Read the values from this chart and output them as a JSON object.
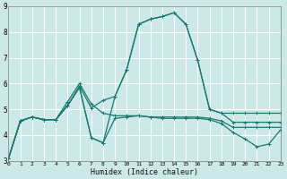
{
  "xlabel": "Humidex (Indice chaleur)",
  "xlim": [
    0,
    23
  ],
  "ylim": [
    3,
    9
  ],
  "xticks": [
    0,
    1,
    2,
    3,
    4,
    5,
    6,
    7,
    8,
    9,
    10,
    11,
    12,
    13,
    14,
    15,
    16,
    17,
    18,
    19,
    20,
    21,
    22,
    23
  ],
  "yticks": [
    3,
    4,
    5,
    6,
    7,
    8,
    9
  ],
  "bg_color": "#cce8e8",
  "grid_color": "#ffffff",
  "line_color": "#1a7a6e",
  "line_width": 0.9,
  "marker": "+",
  "marker_size": 3.5,
  "marker_ew": 0.7,
  "lines": [
    {
      "x": [
        0,
        1,
        2,
        3,
        4,
        5,
        6,
        7,
        8,
        9,
        10,
        11,
        12,
        13,
        14,
        15,
        16,
        17,
        18,
        19,
        20,
        21,
        22,
        23
      ],
      "y": [
        3.1,
        4.55,
        4.7,
        4.6,
        4.6,
        5.15,
        5.9,
        5.05,
        5.35,
        5.5,
        6.55,
        8.3,
        8.5,
        8.6,
        8.75,
        8.3,
        6.9,
        5.0,
        4.85,
        4.85,
        4.85,
        4.85,
        4.85,
        4.85
      ]
    },
    {
      "x": [
        0,
        1,
        2,
        3,
        4,
        5,
        6,
        7,
        8,
        9,
        10,
        11,
        12,
        13,
        14,
        15,
        16,
        17,
        18,
        19,
        20,
        21,
        22,
        23
      ],
      "y": [
        3.1,
        4.55,
        4.7,
        4.6,
        4.6,
        5.3,
        6.0,
        5.2,
        4.85,
        4.75,
        4.75,
        4.75,
        4.7,
        4.7,
        4.7,
        4.7,
        4.7,
        4.65,
        4.55,
        4.3,
        4.3,
        4.3,
        4.3,
        4.3
      ]
    },
    {
      "x": [
        0,
        1,
        2,
        3,
        4,
        5,
        6,
        7,
        8,
        9,
        10,
        11,
        12,
        13,
        14,
        15,
        16,
        17,
        18,
        19,
        20,
        21,
        22,
        23
      ],
      "y": [
        3.1,
        4.55,
        4.7,
        4.6,
        4.6,
        5.15,
        5.85,
        3.9,
        3.7,
        5.5,
        6.55,
        8.3,
        8.5,
        8.6,
        8.75,
        8.3,
        6.9,
        5.0,
        4.85,
        4.5,
        4.5,
        4.5,
        4.5,
        4.5
      ]
    },
    {
      "x": [
        0,
        1,
        2,
        3,
        4,
        5,
        6,
        7,
        8,
        9,
        10,
        11,
        12,
        13,
        14,
        15,
        16,
        17,
        18,
        19,
        20,
        21,
        22,
        23
      ],
      "y": [
        3.1,
        4.55,
        4.7,
        4.6,
        4.6,
        5.15,
        5.85,
        3.9,
        3.7,
        4.65,
        4.7,
        4.75,
        4.7,
        4.65,
        4.65,
        4.65,
        4.65,
        4.6,
        4.45,
        4.1,
        3.85,
        3.55,
        3.65,
        4.2
      ]
    }
  ]
}
